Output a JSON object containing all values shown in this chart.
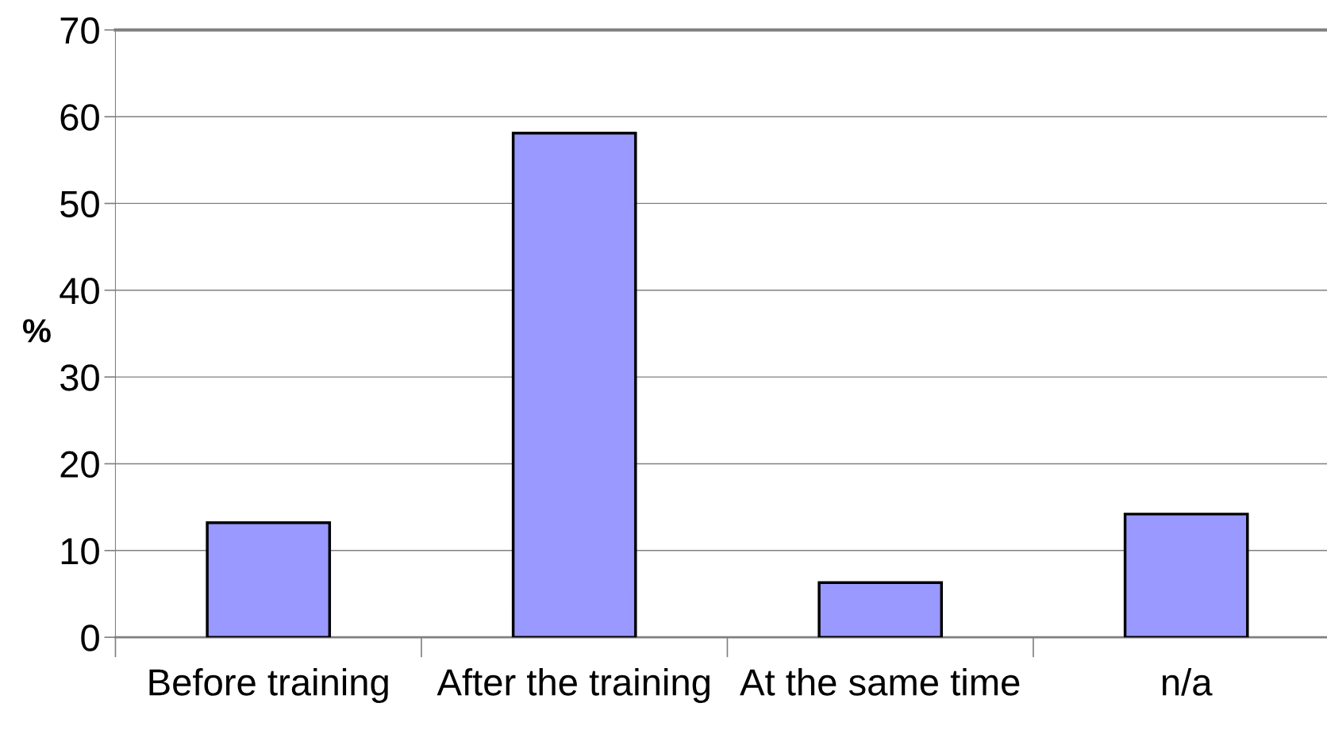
{
  "chart_data": {
    "type": "bar",
    "ylabel": "%",
    "categories": [
      "Before training",
      "After the training",
      "At the same time",
      "n/a"
    ],
    "values": [
      13.2,
      58.1,
      6.3,
      14.2
    ],
    "color": "#9999ff",
    "ylim": [
      0,
      70
    ],
    "yticks": [
      0,
      10,
      20,
      30,
      40,
      50,
      60,
      70
    ],
    "grid": "y"
  }
}
